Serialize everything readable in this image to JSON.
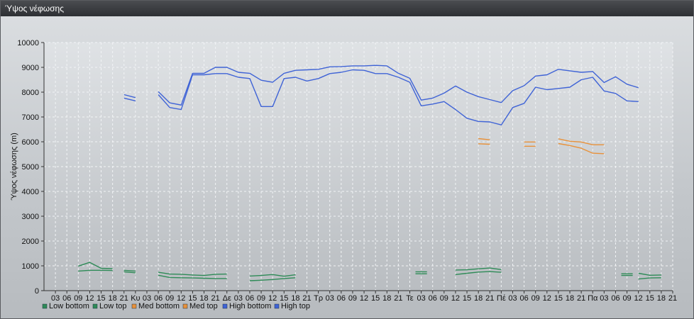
{
  "window": {
    "title": "Ύψος νέφωσης"
  },
  "chart_data": {
    "type": "line",
    "ylabel": "Ύψος νέφωσης (m)",
    "ylim": [
      0,
      10000
    ],
    "yticks": [
      0,
      1000,
      2000,
      3000,
      4000,
      5000,
      6000,
      7000,
      8000,
      9000,
      10000
    ],
    "xticks": [
      "03",
      "06",
      "09",
      "12",
      "15",
      "18",
      "21",
      "Κυ",
      "03",
      "06",
      "09",
      "12",
      "15",
      "18",
      "21",
      "Δε",
      "03",
      "06",
      "09",
      "12",
      "15",
      "18",
      "21",
      "Τρ",
      "03",
      "06",
      "09",
      "12",
      "15",
      "18",
      "21",
      "Τε",
      "03",
      "06",
      "09",
      "12",
      "15",
      "18",
      "21",
      "Πέ",
      "03",
      "06",
      "09",
      "12",
      "15",
      "18",
      "21",
      "Πα",
      "03",
      "06",
      "09",
      "12",
      "15",
      "18",
      "21"
    ],
    "grid": true,
    "legend_position": "bottom-left",
    "colors": {
      "low": "#2e8b57",
      "med": "#e8913a",
      "high": "#3f63d6"
    },
    "series": [
      {
        "name": "Low bottom",
        "color": "#2e8b57",
        "segments": [
          [
            [
              2,
              790
            ],
            [
              3,
              820
            ],
            [
              4,
              820
            ],
            [
              5,
              810
            ]
          ],
          [
            [
              6,
              760
            ],
            [
              7,
              720
            ]
          ],
          [
            [
              9,
              620
            ],
            [
              10,
              530
            ],
            [
              11,
              520
            ],
            [
              12,
              510
            ],
            [
              13,
              500
            ],
            [
              14,
              490
            ],
            [
              15,
              490
            ]
          ],
          [
            [
              17,
              400
            ],
            [
              18,
              420
            ],
            [
              19,
              450
            ],
            [
              20,
              490
            ],
            [
              21,
              520
            ]
          ],
          [
            [
              31.5,
              680
            ],
            [
              32.5,
              680
            ]
          ],
          [
            [
              35,
              650
            ],
            [
              36,
              700
            ],
            [
              37,
              750
            ],
            [
              38,
              770
            ],
            [
              39,
              740
            ]
          ],
          [
            [
              49.5,
              610
            ],
            [
              50.5,
              610
            ]
          ],
          [
            [
              51,
              470
            ],
            [
              52,
              510
            ],
            [
              53,
              520
            ]
          ]
        ]
      },
      {
        "name": "Low top",
        "color": "#2e8b57",
        "segments": [
          [
            [
              2,
              990
            ],
            [
              3,
              1140
            ],
            [
              4,
              900
            ],
            [
              5,
              890
            ]
          ],
          [
            [
              6,
              820
            ],
            [
              7,
              790
            ]
          ],
          [
            [
              9,
              740
            ],
            [
              10,
              670
            ],
            [
              11,
              660
            ],
            [
              12,
              630
            ],
            [
              13,
              610
            ],
            [
              14,
              660
            ],
            [
              15,
              670
            ]
          ],
          [
            [
              17,
              590
            ],
            [
              18,
              610
            ],
            [
              19,
              650
            ],
            [
              20,
              580
            ],
            [
              21,
              640
            ]
          ],
          [
            [
              31.5,
              760
            ],
            [
              32.5,
              760
            ]
          ],
          [
            [
              35,
              830
            ],
            [
              36,
              840
            ],
            [
              37,
              880
            ],
            [
              38,
              910
            ],
            [
              39,
              850
            ]
          ],
          [
            [
              49.5,
              680
            ],
            [
              50.5,
              680
            ]
          ],
          [
            [
              51,
              700
            ],
            [
              52,
              620
            ],
            [
              53,
              630
            ]
          ]
        ]
      },
      {
        "name": "Med bottom",
        "color": "#e8913a",
        "segments": [
          [
            [
              37,
              5920
            ],
            [
              38,
              5900
            ]
          ],
          [
            [
              41,
              5820
            ],
            [
              42,
              5820
            ]
          ],
          [
            [
              44,
              5930
            ],
            [
              45,
              5850
            ],
            [
              46,
              5740
            ],
            [
              47,
              5540
            ],
            [
              48,
              5520
            ]
          ]
        ]
      },
      {
        "name": "Med top",
        "color": "#e8913a",
        "segments": [
          [
            [
              37,
              6130
            ],
            [
              38,
              6080
            ]
          ],
          [
            [
              41,
              5990
            ],
            [
              42,
              5990
            ]
          ],
          [
            [
              44,
              6120
            ],
            [
              45,
              6020
            ],
            [
              46,
              5990
            ],
            [
              47,
              5880
            ],
            [
              48,
              5880
            ]
          ]
        ]
      },
      {
        "name": "High bottom",
        "color": "#3f63d6",
        "segments": [
          [
            [
              6,
              7760
            ],
            [
              7,
              7650
            ]
          ],
          [
            [
              9,
              7900
            ],
            [
              10,
              7380
            ],
            [
              11,
              7300
            ],
            [
              12,
              8700
            ],
            [
              13,
              8700
            ],
            [
              14,
              8750
            ],
            [
              15,
              8750
            ],
            [
              16,
              8600
            ],
            [
              17,
              8550
            ],
            [
              18,
              7420
            ],
            [
              19,
              7420
            ],
            [
              20,
              8550
            ],
            [
              21,
              8600
            ],
            [
              22,
              8450
            ],
            [
              23,
              8550
            ],
            [
              24,
              8750
            ],
            [
              25,
              8800
            ],
            [
              26,
              8900
            ],
            [
              27,
              8880
            ],
            [
              28,
              8750
            ],
            [
              29,
              8750
            ],
            [
              30,
              8600
            ],
            [
              31,
              8400
            ],
            [
              32,
              7450
            ],
            [
              33,
              7520
            ],
            [
              34,
              7620
            ],
            [
              35,
              7300
            ],
            [
              36,
              6950
            ],
            [
              37,
              6820
            ],
            [
              38,
              6800
            ],
            [
              39,
              6680
            ],
            [
              40,
              7380
            ],
            [
              41,
              7550
            ],
            [
              42,
              8200
            ],
            [
              43,
              8100
            ],
            [
              44,
              8150
            ],
            [
              45,
              8200
            ],
            [
              46,
              8500
            ],
            [
              47,
              8600
            ],
            [
              48,
              8050
            ],
            [
              49,
              7950
            ],
            [
              50,
              7650
            ],
            [
              51,
              7620
            ]
          ]
        ]
      },
      {
        "name": "High top",
        "color": "#3f63d6",
        "segments": [
          [
            [
              6,
              7900
            ],
            [
              7,
              7780
            ]
          ],
          [
            [
              9,
              8020
            ],
            [
              10,
              7570
            ],
            [
              11,
              7480
            ],
            [
              12,
              8760
            ],
            [
              13,
              8760
            ],
            [
              14,
              9000
            ],
            [
              15,
              9000
            ],
            [
              16,
              8800
            ],
            [
              17,
              8760
            ],
            [
              18,
              8480
            ],
            [
              19,
              8400
            ],
            [
              20,
              8760
            ],
            [
              21,
              8880
            ],
            [
              22,
              8900
            ],
            [
              23,
              8920
            ],
            [
              24,
              9020
            ],
            [
              25,
              9030
            ],
            [
              26,
              9060
            ],
            [
              27,
              9060
            ],
            [
              28,
              9080
            ],
            [
              29,
              9060
            ],
            [
              30,
              8760
            ],
            [
              31,
              8560
            ],
            [
              32,
              7680
            ],
            [
              33,
              7760
            ],
            [
              34,
              7960
            ],
            [
              35,
              8250
            ],
            [
              36,
              8000
            ],
            [
              37,
              7820
            ],
            [
              38,
              7700
            ],
            [
              39,
              7580
            ],
            [
              40,
              8060
            ],
            [
              41,
              8260
            ],
            [
              42,
              8650
            ],
            [
              43,
              8700
            ],
            [
              44,
              8920
            ],
            [
              45,
              8860
            ],
            [
              46,
              8800
            ],
            [
              47,
              8830
            ],
            [
              48,
              8390
            ],
            [
              49,
              8620
            ],
            [
              50,
              8320
            ],
            [
              51,
              8180
            ]
          ]
        ]
      }
    ]
  }
}
